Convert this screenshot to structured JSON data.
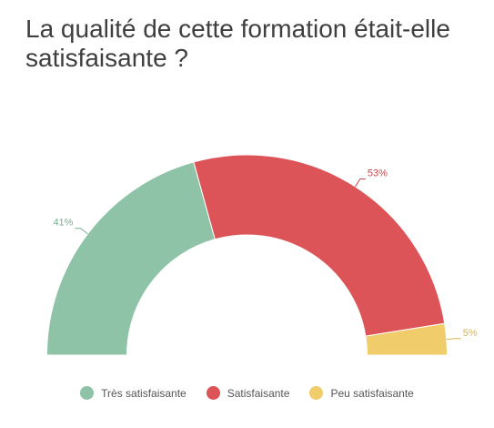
{
  "chart_data": {
    "type": "pie",
    "title": "La qualité de cette formation était-elle satisfaisante ?",
    "categories": [
      "Très satisfaisante",
      "Satisfaisante",
      "Peu satisfaisante"
    ],
    "values": [
      41,
      53,
      5
    ],
    "value_labels": [
      "41%",
      "53%",
      "5%"
    ],
    "colors": [
      "#8fc3a8",
      "#dc5457",
      "#f0cc6b"
    ],
    "style": "semi-donut",
    "legend_position": "bottom"
  }
}
